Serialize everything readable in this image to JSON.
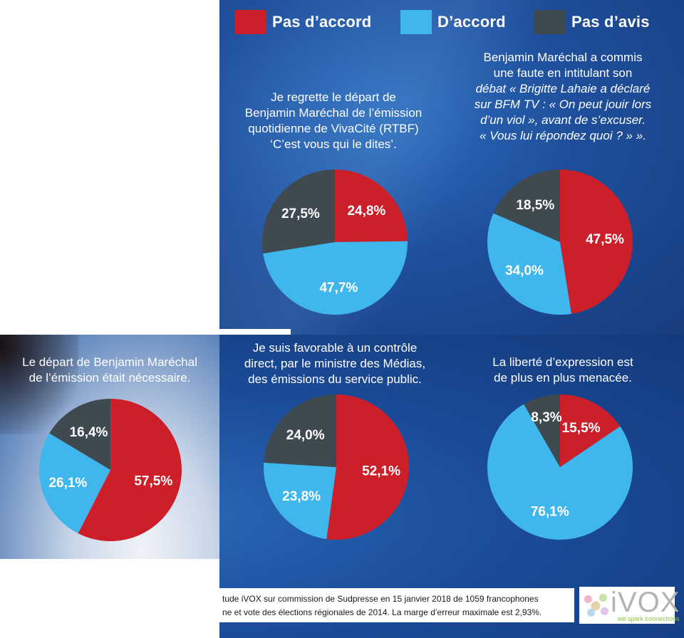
{
  "colors": {
    "pas_d_accord": "#cc1f2a",
    "d_accord": "#3fb6ec",
    "pas_d_avis": "#3e4a50"
  },
  "legend": [
    {
      "label": "Pas d’accord",
      "color": "#cc1f2a"
    },
    {
      "label": "D’accord",
      "color": "#3fb6ec"
    },
    {
      "label": "Pas d’avis",
      "color": "#3e4a50"
    }
  ],
  "chart_data": [
    {
      "type": "pie",
      "question": [
        "Je regrette le départ de",
        "Benjamin Maréchal de l’émission",
        "quotidienne de VivaCité (RTBF)",
        "‘C’est vous qui le dites’."
      ],
      "slices": [
        {
          "category": "Pas d’accord",
          "value": 24.8,
          "label": "24,8%"
        },
        {
          "category": "D’accord",
          "value": 47.7,
          "label": "47,7%"
        },
        {
          "category": "Pas d’avis",
          "value": 27.5,
          "label": "27,5%"
        }
      ]
    },
    {
      "type": "pie",
      "question": [
        "Benjamin Maréchal a commis",
        "une faute en intitulant son",
        "débat « Brigitte Lahaie a déclaré",
        "sur BFM TV : « On peut jouir lors",
        "d’un viol », avant de s’excuser.",
        "« Vous lui répondez quoi ? » »."
      ],
      "slices": [
        {
          "category": "Pas d’accord",
          "value": 47.5,
          "label": "47,5%"
        },
        {
          "category": "D’accord",
          "value": 34.0,
          "label": "34,0%"
        },
        {
          "category": "Pas d’avis",
          "value": 18.5,
          "label": "18,5%"
        }
      ]
    },
    {
      "type": "pie",
      "question": [
        "Le départ de Benjamin Maréchal",
        "de l’émission était nécessaire."
      ],
      "slices": [
        {
          "category": "Pas d’accord",
          "value": 57.5,
          "label": "57,5%"
        },
        {
          "category": "D’accord",
          "value": 26.1,
          "label": "26,1%"
        },
        {
          "category": "Pas d’avis",
          "value": 16.4,
          "label": "16,4%"
        }
      ]
    },
    {
      "type": "pie",
      "question": [
        "Je suis favorable à un contrôle",
        "direct, par le ministre des Médias,",
        "des émissions du service public."
      ],
      "slices": [
        {
          "category": "Pas d’accord",
          "value": 52.1,
          "label": "52,1%"
        },
        {
          "category": "D’accord",
          "value": 23.8,
          "label": "23,8%"
        },
        {
          "category": "Pas d’avis",
          "value": 24.0,
          "label": "24,0%"
        }
      ]
    },
    {
      "type": "pie",
      "question": [
        "La liberté d’expression est",
        "de plus en plus menacée."
      ],
      "slices": [
        {
          "category": "Pas d’accord",
          "value": 15.5,
          "label": "15,5%"
        },
        {
          "category": "D’accord",
          "value": 76.1,
          "label": "76,1%"
        },
        {
          "category": "Pas d’avis",
          "value": 8.3,
          "label": "8,3%"
        }
      ]
    }
  ],
  "footer": {
    "line1": "tude iVOX sur commission de Sudpresse en 15 janvier 2018 de 1059 francophones",
    "line2": "ne et vote des élections régionales de 2014. La marge d’erreur maximale est 2,93%."
  },
  "logo": {
    "text": "iVOX",
    "tagline": "we spark connections"
  }
}
